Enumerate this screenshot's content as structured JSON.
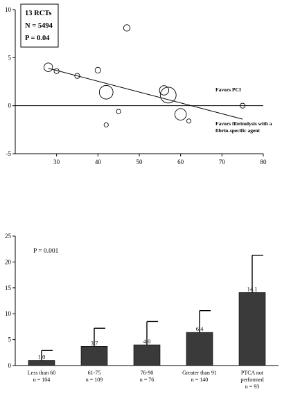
{
  "chart_data": [
    {
      "type": "scatter",
      "title": "",
      "xlabel": "",
      "ylabel": "",
      "xlim": [
        20,
        80
      ],
      "ylim": [
        -5,
        10
      ],
      "x_ticks": [
        30,
        40,
        50,
        60,
        70,
        80
      ],
      "y_ticks": [
        -5,
        0,
        5,
        10
      ],
      "stats_box": [
        "13 RCTs",
        "N = 5494",
        "P = 0.04"
      ],
      "annotations": [
        "Favors PCI",
        "Favors fibrinolysis with a",
        "fibrin-specific agent"
      ],
      "points": [
        {
          "x": 28,
          "y": 4.0,
          "size": 1.2
        },
        {
          "x": 30,
          "y": 3.6,
          "size": 0.7
        },
        {
          "x": 35,
          "y": 3.1,
          "size": 0.7
        },
        {
          "x": 40,
          "y": 3.7,
          "size": 0.8
        },
        {
          "x": 42,
          "y": 1.4,
          "size": 1.9
        },
        {
          "x": 42,
          "y": -2.0,
          "size": 0.6
        },
        {
          "x": 45,
          "y": -0.6,
          "size": 0.6
        },
        {
          "x": 47,
          "y": 8.1,
          "size": 0.9
        },
        {
          "x": 56,
          "y": 1.6,
          "size": 1.3
        },
        {
          "x": 57,
          "y": 1.1,
          "size": 2.2
        },
        {
          "x": 60,
          "y": -0.9,
          "size": 1.6
        },
        {
          "x": 62,
          "y": -1.6,
          "size": 0.6
        },
        {
          "x": 75,
          "y": 0.0,
          "size": 0.7
        }
      ],
      "regression_line": {
        "x": [
          28,
          75
        ],
        "y": [
          3.9,
          -1.4
        ]
      },
      "reference_line_y": 0
    },
    {
      "type": "bar",
      "title": "",
      "xlabel": "",
      "ylabel": "",
      "ylim": [
        0,
        25
      ],
      "y_ticks": [
        0,
        5,
        10,
        15,
        20,
        25
      ],
      "p_value": "P = 0.001",
      "categories": [
        "Less than 60",
        "61-75",
        "76-90",
        "Greater than 91",
        "PTCA not performed"
      ],
      "category_n": [
        "n = 104",
        "n = 109",
        "n = 76",
        "n = 140",
        "n = 93"
      ],
      "values": [
        1.0,
        3.7,
        4.0,
        6.4,
        14.1
      ],
      "value_labels": [
        "1.0",
        "3.7",
        "4.0",
        "6.4",
        "14.1"
      ],
      "error_upper": [
        2.9,
        7.2,
        8.5,
        10.6,
        21.3
      ],
      "bar_color": "#3a3a3a"
    }
  ]
}
